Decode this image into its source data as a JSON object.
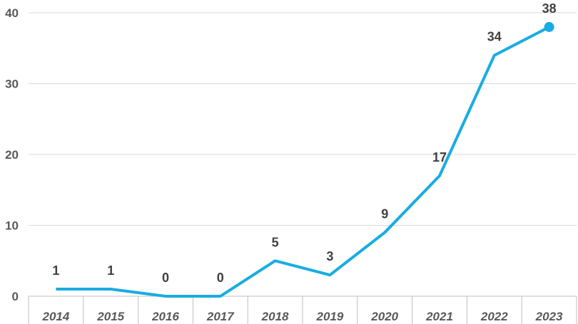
{
  "chart_data": {
    "type": "line",
    "title": "",
    "xlabel": "",
    "ylabel": "",
    "categories": [
      "2014",
      "2015",
      "2016",
      "2017",
      "2018",
      "2019",
      "2020",
      "2021",
      "2022",
      "2023"
    ],
    "series": [
      {
        "values": [
          1,
          1,
          0,
          0,
          5,
          3,
          9,
          17,
          34,
          38
        ]
      }
    ],
    "ylim": [
      0,
      40
    ],
    "yticks": [
      "0",
      "10",
      "20",
      "30",
      "40"
    ],
    "grid": true,
    "legend": "none",
    "end_marker": true,
    "data_labels": true,
    "colors": {
      "line": "#19ACE3",
      "grid": "#D9D9D9",
      "axis": "#BFBFBF"
    }
  }
}
